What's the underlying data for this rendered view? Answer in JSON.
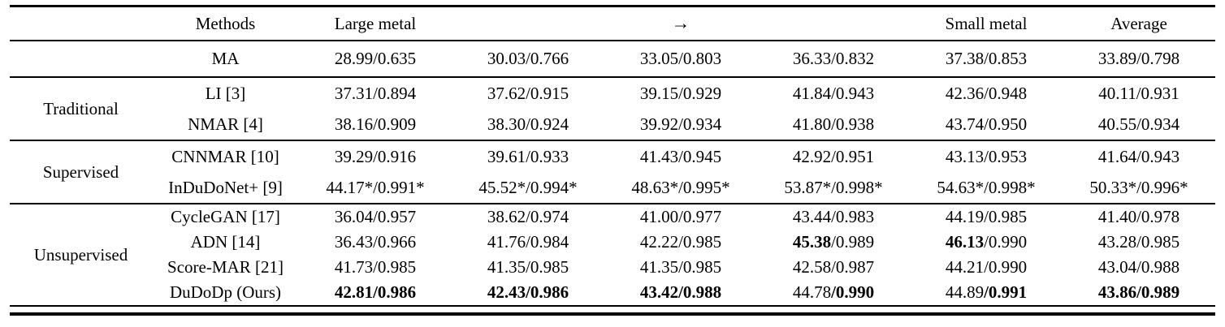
{
  "page": {
    "background": "#ffffff",
    "text_color": "#000000"
  },
  "table": {
    "header": {
      "group_label": "",
      "methods_label": "Methods",
      "data_labels": [
        "Large metal",
        "",
        "→",
        "",
        "Small metal",
        "Average"
      ]
    },
    "groups": [
      {
        "label": "",
        "rows": [
          {
            "method": "MA",
            "cells": [
              {
                "v": "28.99/0.635",
                "bold": "none"
              },
              {
                "v": "30.03/0.766",
                "bold": "none"
              },
              {
                "v": "33.05/0.803",
                "bold": "none"
              },
              {
                "v": "36.33/0.832",
                "bold": "none"
              },
              {
                "v": "37.38/0.853",
                "bold": "none"
              },
              {
                "v": "33.89/0.798",
                "bold": "none"
              }
            ]
          }
        ]
      },
      {
        "label": "Traditional",
        "rows": [
          {
            "method": "LI [3]",
            "cells": [
              {
                "v": "37.31/0.894",
                "bold": "none"
              },
              {
                "v": "37.62/0.915",
                "bold": "none"
              },
              {
                "v": "39.15/0.929",
                "bold": "none"
              },
              {
                "v": "41.84/0.943",
                "bold": "none"
              },
              {
                "v": "42.36/0.948",
                "bold": "none"
              },
              {
                "v": "40.11/0.931",
                "bold": "none"
              }
            ]
          },
          {
            "method": "NMAR [4]",
            "cells": [
              {
                "v": "38.16/0.909",
                "bold": "none"
              },
              {
                "v": "38.30/0.924",
                "bold": "none"
              },
              {
                "v": "39.92/0.934",
                "bold": "none"
              },
              {
                "v": "41.80/0.938",
                "bold": "none"
              },
              {
                "v": "43.74/0.950",
                "bold": "none"
              },
              {
                "v": "40.55/0.934",
                "bold": "none"
              }
            ]
          }
        ]
      },
      {
        "label": "Supervised",
        "rows": [
          {
            "method": "CNNMAR [10]",
            "cells": [
              {
                "v": "39.29/0.916",
                "bold": "none"
              },
              {
                "v": "39.61/0.933",
                "bold": "none"
              },
              {
                "v": "41.43/0.945",
                "bold": "none"
              },
              {
                "v": "42.92/0.951",
                "bold": "none"
              },
              {
                "v": "43.13/0.953",
                "bold": "none"
              },
              {
                "v": "41.64/0.943",
                "bold": "none"
              }
            ]
          },
          {
            "method": "InDuDoNet+ [9]",
            "cells": [
              {
                "v": "44.17*/0.991*",
                "bold": "none"
              },
              {
                "v": "45.52*/0.994*",
                "bold": "none"
              },
              {
                "v": "48.63*/0.995*",
                "bold": "none"
              },
              {
                "v": "53.87*/0.998*",
                "bold": "none"
              },
              {
                "v": "54.63*/0.998*",
                "bold": "none"
              },
              {
                "v": "50.33*/0.996*",
                "bold": "none"
              }
            ]
          }
        ]
      },
      {
        "label": "Unsupervised",
        "rows": [
          {
            "method": "CycleGAN [17]",
            "cells": [
              {
                "v": "36.04/0.957",
                "bold": "none"
              },
              {
                "v": "38.62/0.974",
                "bold": "none"
              },
              {
                "v": "41.00/0.977",
                "bold": "none"
              },
              {
                "v": "43.44/0.983",
                "bold": "none"
              },
              {
                "v": "44.19/0.985",
                "bold": "none"
              },
              {
                "v": "41.40/0.978",
                "bold": "none"
              }
            ]
          },
          {
            "method": "ADN [14]",
            "cells": [
              {
                "v": "36.43/0.966",
                "bold": "none"
              },
              {
                "v": "41.76/0.984",
                "bold": "none"
              },
              {
                "v": "42.22/0.985",
                "bold": "none"
              },
              {
                "v": "45.38/0.989",
                "bold": "psnr"
              },
              {
                "v": "46.13/0.990",
                "bold": "psnr"
              },
              {
                "v": "43.28/0.985",
                "bold": "none"
              }
            ]
          },
          {
            "method": "Score-MAR [21]",
            "cells": [
              {
                "v": "41.73/0.985",
                "bold": "none"
              },
              {
                "v": "41.35/0.985",
                "bold": "none"
              },
              {
                "v": "41.35/0.985",
                "bold": "none"
              },
              {
                "v": "42.58/0.987",
                "bold": "none"
              },
              {
                "v": "44.21/0.990",
                "bold": "none"
              },
              {
                "v": "43.04/0.988",
                "bold": "none"
              }
            ]
          },
          {
            "method": "DuDoDp (Ours)",
            "cells": [
              {
                "v": "42.81/0.986",
                "bold": "all"
              },
              {
                "v": "42.43/0.986",
                "bold": "all"
              },
              {
                "v": "43.42/0.988",
                "bold": "all"
              },
              {
                "v": "44.78/0.990",
                "bold": "ssim"
              },
              {
                "v": "44.89/0.991",
                "bold": "ssim"
              },
              {
                "v": "43.86/0.989",
                "bold": "all"
              }
            ]
          }
        ]
      }
    ]
  }
}
